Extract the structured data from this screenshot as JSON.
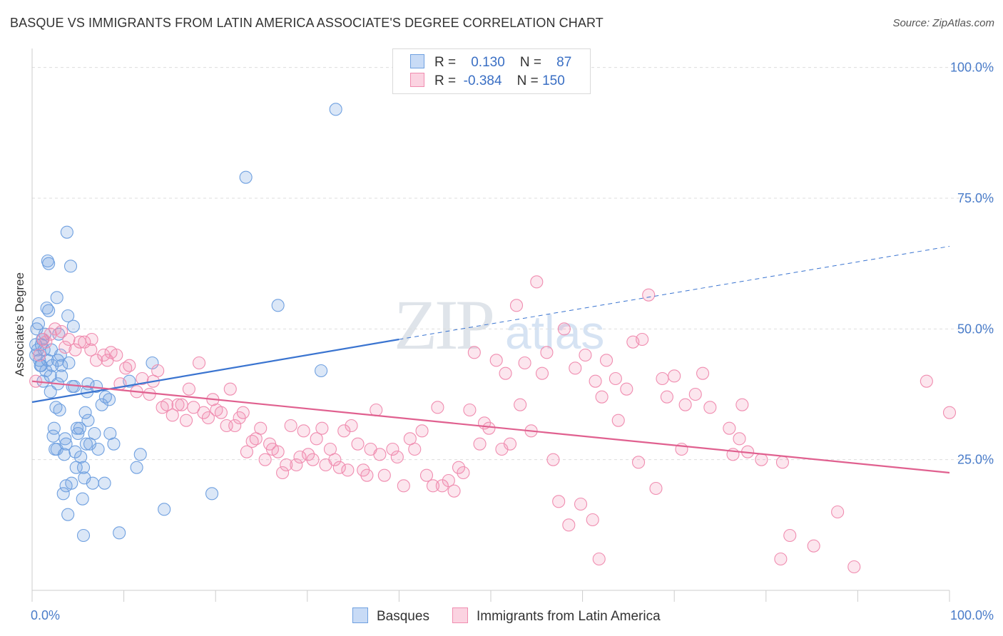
{
  "title": "BASQUE VS IMMIGRANTS FROM LATIN AMERICA ASSOCIATE'S DEGREE CORRELATION CHART",
  "source": "Source: ZipAtlas.com",
  "watermark": {
    "zip": "ZIP",
    "atlas": "atlas"
  },
  "legend": {
    "rows": [
      {
        "r_label": "R =",
        "r_value": "0.130",
        "n_label": "N =",
        "n_value": "87",
        "color": "#6fa0e0"
      },
      {
        "r_label": "R =",
        "r_value": "-0.384",
        "n_label": "N =",
        "n_value": "150",
        "color": "#f08db0"
      }
    ]
  },
  "bottom_legend": [
    {
      "label": "Basques",
      "color": "#6fa0e0"
    },
    {
      "label": "Immigrants from Latin America",
      "color": "#f08db0"
    }
  ],
  "colors": {
    "blue": "#3a74d0",
    "pink": "#e0608f",
    "grid": "#dddddd",
    "tick": "#4a7cc9"
  },
  "chart_data": {
    "type": "scatter",
    "title": "BASQUE VS IMMIGRANTS FROM LATIN AMERICA ASSOCIATE'S DEGREE CORRELATION CHART",
    "ylabel": "Associate's Degree",
    "xlabel": "",
    "x_tick_labels": [
      "0.0%",
      "100.0%"
    ],
    "y_tick_labels": [
      "25.0%",
      "50.0%",
      "75.0%",
      "100.0%"
    ],
    "y_ticks": [
      25,
      50,
      75,
      100
    ],
    "xlim": [
      0,
      100
    ],
    "ylim": [
      0,
      102
    ],
    "grid": "horizontal dashed",
    "legend_position": "top-center",
    "series": [
      {
        "name": "Basques",
        "color": "#6fa0e0",
        "R": 0.13,
        "N": 87,
        "trend": {
          "x0": 0,
          "y0": 36.0,
          "x1": 40,
          "y1": 48.0,
          "dashed_to_x": 100,
          "dashed_to_y": 65.8
        },
        "points": [
          [
            0.4,
            47
          ],
          [
            0.4,
            45
          ],
          [
            0.5,
            50
          ],
          [
            0.6,
            46
          ],
          [
            0.8,
            44
          ],
          [
            0.9,
            43
          ],
          [
            1.0,
            47
          ],
          [
            1.0,
            43
          ],
          [
            1.2,
            40
          ],
          [
            1.3,
            46
          ],
          [
            1.4,
            49
          ],
          [
            1.5,
            42
          ],
          [
            1.6,
            54
          ],
          [
            1.7,
            44
          ],
          [
            1.7,
            63
          ],
          [
            1.8,
            53.5
          ],
          [
            1.8,
            62.5
          ],
          [
            2.0,
            41
          ],
          [
            2.0,
            38
          ],
          [
            2.2,
            43
          ],
          [
            2.3,
            29.5
          ],
          [
            2.4,
            31
          ],
          [
            2.5,
            27
          ],
          [
            2.6,
            35
          ],
          [
            2.7,
            27
          ],
          [
            2.7,
            56
          ],
          [
            2.8,
            44
          ],
          [
            2.8,
            39.5
          ],
          [
            3.0,
            34.5
          ],
          [
            3.1,
            45
          ],
          [
            3.2,
            41
          ],
          [
            3.2,
            43
          ],
          [
            3.4,
            18.5
          ],
          [
            3.5,
            26
          ],
          [
            3.6,
            29
          ],
          [
            3.7,
            28
          ],
          [
            3.7,
            20
          ],
          [
            3.8,
            68.5
          ],
          [
            3.9,
            14.5
          ],
          [
            4.0,
            43.5
          ],
          [
            4.2,
            62
          ],
          [
            4.3,
            20.5
          ],
          [
            4.4,
            39
          ],
          [
            4.5,
            50.5
          ],
          [
            4.6,
            39
          ],
          [
            4.7,
            26.5
          ],
          [
            4.8,
            23.5
          ],
          [
            4.9,
            31
          ],
          [
            5.0,
            30
          ],
          [
            5.2,
            31
          ],
          [
            5.3,
            25.5
          ],
          [
            5.5,
            17.5
          ],
          [
            5.6,
            23.5
          ],
          [
            5.6,
            10.5
          ],
          [
            5.7,
            21.5
          ],
          [
            5.8,
            34
          ],
          [
            5.9,
            28
          ],
          [
            6.0,
            38
          ],
          [
            6.1,
            32.5
          ],
          [
            6.1,
            39.5
          ],
          [
            6.3,
            28
          ],
          [
            6.6,
            20.5
          ],
          [
            6.8,
            30
          ],
          [
            7.0,
            39
          ],
          [
            7.2,
            27
          ],
          [
            7.6,
            35.5
          ],
          [
            7.9,
            20.5
          ],
          [
            8.0,
            37
          ],
          [
            8.4,
            36.5
          ],
          [
            8.5,
            30
          ],
          [
            8.9,
            28
          ],
          [
            9.5,
            11
          ],
          [
            10.6,
            40
          ],
          [
            11.4,
            23.5
          ],
          [
            11.8,
            26
          ],
          [
            13.1,
            43.5
          ],
          [
            14.4,
            15.5
          ],
          [
            19.6,
            18.5
          ],
          [
            23.3,
            79
          ],
          [
            31.5,
            42
          ],
          [
            33.1,
            92
          ],
          [
            26.8,
            54.5
          ],
          [
            2.9,
            49
          ],
          [
            3.9,
            52.5
          ],
          [
            1.1,
            48
          ],
          [
            0.7,
            51
          ],
          [
            2.1,
            46
          ]
        ]
      },
      {
        "name": "Immigrants from Latin America",
        "color": "#f08db0",
        "R": -0.384,
        "N": 150,
        "trend": {
          "x0": 0,
          "y0": 40.0,
          "x1": 100,
          "y1": 22.5
        },
        "points": [
          [
            0.4,
            40
          ],
          [
            0.8,
            45
          ],
          [
            1.2,
            48
          ],
          [
            1.5,
            47.5
          ],
          [
            2.0,
            49
          ],
          [
            2.5,
            50
          ],
          [
            3.2,
            49.5
          ],
          [
            3.6,
            46.5
          ],
          [
            4.0,
            48
          ],
          [
            4.7,
            46
          ],
          [
            5.2,
            47.5
          ],
          [
            5.7,
            47.5
          ],
          [
            6.4,
            46
          ],
          [
            6.5,
            48
          ],
          [
            7.0,
            44
          ],
          [
            7.8,
            45
          ],
          [
            8.2,
            44
          ],
          [
            8.6,
            45.5
          ],
          [
            9.2,
            45
          ],
          [
            9.6,
            39.5
          ],
          [
            10.2,
            42.5
          ],
          [
            10.6,
            43
          ],
          [
            11.4,
            38
          ],
          [
            12.0,
            40.5
          ],
          [
            12.8,
            37.5
          ],
          [
            13.2,
            40
          ],
          [
            13.7,
            42
          ],
          [
            14.2,
            35
          ],
          [
            14.7,
            35.5
          ],
          [
            15.3,
            33.5
          ],
          [
            15.9,
            35.5
          ],
          [
            16.3,
            35.5
          ],
          [
            16.8,
            32.5
          ],
          [
            17.1,
            38.5
          ],
          [
            17.6,
            35
          ],
          [
            18.2,
            43.5
          ],
          [
            18.7,
            34
          ],
          [
            19.2,
            33
          ],
          [
            19.7,
            36.5
          ],
          [
            20.1,
            34.5
          ],
          [
            20.6,
            34
          ],
          [
            21.2,
            31.5
          ],
          [
            21.6,
            38.5
          ],
          [
            22.1,
            31.5
          ],
          [
            22.6,
            33
          ],
          [
            23.0,
            34
          ],
          [
            23.4,
            26.5
          ],
          [
            24.0,
            28.5
          ],
          [
            24.4,
            29
          ],
          [
            24.9,
            31
          ],
          [
            25.4,
            25
          ],
          [
            25.9,
            28
          ],
          [
            26.2,
            27
          ],
          [
            26.8,
            26.5
          ],
          [
            27.3,
            22.5
          ],
          [
            27.7,
            24
          ],
          [
            28.2,
            31.5
          ],
          [
            28.8,
            24
          ],
          [
            29.2,
            25.5
          ],
          [
            29.6,
            30.5
          ],
          [
            30.1,
            26
          ],
          [
            30.6,
            25
          ],
          [
            31.0,
            29
          ],
          [
            31.6,
            31
          ],
          [
            32.0,
            24
          ],
          [
            32.5,
            27
          ],
          [
            33.0,
            25
          ],
          [
            33.5,
            23.5
          ],
          [
            34.0,
            30.5
          ],
          [
            34.4,
            23
          ],
          [
            34.8,
            31.5
          ],
          [
            35.5,
            28
          ],
          [
            36.1,
            23
          ],
          [
            36.5,
            22
          ],
          [
            36.9,
            27
          ],
          [
            37.5,
            34.5
          ],
          [
            37.9,
            26
          ],
          [
            38.4,
            22
          ],
          [
            39.3,
            27
          ],
          [
            39.8,
            25.5
          ],
          [
            40.5,
            20
          ],
          [
            41.2,
            29
          ],
          [
            41.7,
            27
          ],
          [
            42.5,
            30.5
          ],
          [
            43.0,
            22
          ],
          [
            43.7,
            20
          ],
          [
            44.2,
            35
          ],
          [
            44.7,
            20
          ],
          [
            45.4,
            21
          ],
          [
            46.0,
            19
          ],
          [
            46.5,
            23.5
          ],
          [
            47.0,
            22.5
          ],
          [
            47.7,
            34.5
          ],
          [
            48.2,
            45.5
          ],
          [
            48.8,
            28
          ],
          [
            49.3,
            32
          ],
          [
            49.8,
            31
          ],
          [
            50.6,
            44
          ],
          [
            51.2,
            27
          ],
          [
            51.6,
            41.5
          ],
          [
            52.1,
            28
          ],
          [
            52.8,
            54.5
          ],
          [
            53.2,
            35.5
          ],
          [
            53.7,
            43.5
          ],
          [
            54.4,
            30.5
          ],
          [
            55.0,
            59
          ],
          [
            55.6,
            41.5
          ],
          [
            56.1,
            45.5
          ],
          [
            56.8,
            25
          ],
          [
            57.4,
            17
          ],
          [
            58.0,
            50
          ],
          [
            58.5,
            12.5
          ],
          [
            59.2,
            42.5
          ],
          [
            59.8,
            16.5
          ],
          [
            60.3,
            45
          ],
          [
            61.1,
            13.5
          ],
          [
            61.4,
            40
          ],
          [
            61.8,
            6
          ],
          [
            62.1,
            37
          ],
          [
            62.6,
            44
          ],
          [
            63.6,
            40.5
          ],
          [
            63.9,
            32.5
          ],
          [
            64.8,
            38.5
          ],
          [
            65.5,
            47.5
          ],
          [
            66.1,
            24.5
          ],
          [
            66.5,
            48
          ],
          [
            67.2,
            56.5
          ],
          [
            68.0,
            19.5
          ],
          [
            68.7,
            40.5
          ],
          [
            69.2,
            37
          ],
          [
            70.0,
            41
          ],
          [
            70.8,
            27
          ],
          [
            71.2,
            35.5
          ],
          [
            72.3,
            37.5
          ],
          [
            73.1,
            41.5
          ],
          [
            73.9,
            35
          ],
          [
            76.0,
            31
          ],
          [
            76.4,
            26
          ],
          [
            77.1,
            29
          ],
          [
            77.4,
            35.5
          ],
          [
            78.0,
            26.5
          ],
          [
            79.5,
            25
          ],
          [
            81.6,
            6
          ],
          [
            81.8,
            24.5
          ],
          [
            82.6,
            10.5
          ],
          [
            85.2,
            8.5
          ],
          [
            87.8,
            15
          ],
          [
            89.6,
            4.5
          ],
          [
            100.0,
            34
          ],
          [
            97.5,
            40
          ]
        ]
      }
    ]
  }
}
